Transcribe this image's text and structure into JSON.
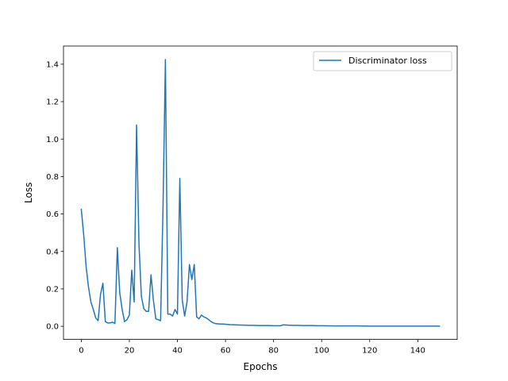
{
  "chart_data": {
    "type": "line",
    "title": "",
    "xlabel": "Epochs",
    "ylabel": "Loss",
    "xlim": [
      -7.4,
      156.4
    ],
    "ylim": [
      -0.07,
      1.497
    ],
    "xticks": [
      0,
      20,
      40,
      60,
      80,
      100,
      120,
      140
    ],
    "yticks": [
      0.0,
      0.2,
      0.4,
      0.6,
      0.8,
      1.0,
      1.2,
      1.4
    ],
    "grid": false,
    "legend_position": "top-right",
    "series": [
      {
        "name": "Discriminator loss",
        "color": "#1f77b4",
        "x": [
          0,
          1,
          2,
          3,
          4,
          5,
          6,
          7,
          8,
          9,
          10,
          11,
          12,
          13,
          14,
          15,
          16,
          17,
          18,
          19,
          20,
          21,
          22,
          23,
          24,
          25,
          26,
          27,
          28,
          29,
          30,
          31,
          32,
          33,
          34,
          35,
          36,
          37,
          38,
          39,
          40,
          41,
          42,
          43,
          44,
          45,
          46,
          47,
          48,
          49,
          50,
          51,
          52,
          53,
          54,
          55,
          56,
          57,
          58,
          59,
          60,
          62,
          64,
          66,
          68,
          70,
          72,
          74,
          76,
          78,
          80,
          82,
          83,
          84,
          86,
          88,
          90,
          92,
          94,
          96,
          98,
          100,
          105,
          110,
          115,
          120,
          125,
          130,
          135,
          140,
          145,
          149
        ],
        "y": [
          0.625,
          0.49,
          0.32,
          0.21,
          0.13,
          0.09,
          0.045,
          0.03,
          0.17,
          0.23,
          0.025,
          0.018,
          0.018,
          0.022,
          0.015,
          0.42,
          0.18,
          0.09,
          0.025,
          0.035,
          0.06,
          0.3,
          0.13,
          1.075,
          0.44,
          0.16,
          0.095,
          0.08,
          0.08,
          0.275,
          0.14,
          0.04,
          0.035,
          0.03,
          0.63,
          1.425,
          0.065,
          0.065,
          0.055,
          0.09,
          0.065,
          0.79,
          0.14,
          0.055,
          0.13,
          0.33,
          0.25,
          0.33,
          0.05,
          0.04,
          0.06,
          0.05,
          0.045,
          0.035,
          0.025,
          0.018,
          0.014,
          0.013,
          0.012,
          0.012,
          0.011,
          0.009,
          0.008,
          0.007,
          0.006,
          0.005,
          0.005,
          0.004,
          0.004,
          0.004,
          0.003,
          0.003,
          0.003,
          0.008,
          0.006,
          0.005,
          0.005,
          0.004,
          0.004,
          0.004,
          0.003,
          0.003,
          0.002,
          0.002,
          0.002,
          0.001,
          0.001,
          0.001,
          0.001,
          0.001,
          0.001,
          0.001
        ]
      }
    ]
  }
}
